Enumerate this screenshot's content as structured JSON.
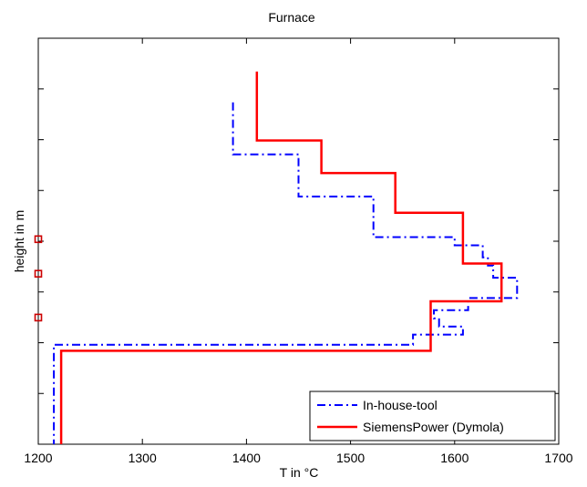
{
  "chart_data": {
    "type": "line",
    "title": "Furnace",
    "xlabel": "T in °C",
    "ylabel": "height in m",
    "xlim": [
      1200,
      1700
    ],
    "ylim": [
      0,
      10
    ],
    "xticks": [
      "1200",
      "1300",
      "1400",
      "1500",
      "1600",
      "1700"
    ],
    "y_tick_count": 8,
    "y_tick_labels_shown": false,
    "grid": false,
    "legend_position": "bottom-right",
    "series": [
      {
        "name": "In-house-tool",
        "color": "#0000ff",
        "style": "dash-dot",
        "points": [
          [
            1387,
            8.42
          ],
          [
            1387,
            7.14
          ],
          [
            1450,
            7.14
          ],
          [
            1450,
            6.1
          ],
          [
            1522,
            6.1
          ],
          [
            1522,
            5.1
          ],
          [
            1600,
            5.1
          ],
          [
            1600,
            4.9
          ],
          [
            1627,
            4.9
          ],
          [
            1627,
            4.6
          ],
          [
            1632,
            4.6
          ],
          [
            1632,
            4.4
          ],
          [
            1637,
            4.4
          ],
          [
            1637,
            4.1
          ],
          [
            1660,
            4.1
          ],
          [
            1660,
            3.6
          ],
          [
            1613,
            3.6
          ],
          [
            1613,
            3.3
          ],
          [
            1580,
            3.3
          ],
          [
            1580,
            3.1
          ],
          [
            1585,
            3.1
          ],
          [
            1585,
            2.9
          ],
          [
            1608,
            2.9
          ],
          [
            1608,
            2.7
          ],
          [
            1560,
            2.7
          ],
          [
            1560,
            2.45
          ],
          [
            1215,
            2.45
          ],
          [
            1215,
            0
          ]
        ]
      },
      {
        "name": "SiemensPower (Dymola)",
        "color": "#ff0000",
        "style": "solid",
        "points": [
          [
            1410,
            9.18
          ],
          [
            1410,
            7.48
          ],
          [
            1472,
            7.48
          ],
          [
            1472,
            6.68
          ],
          [
            1543,
            6.68
          ],
          [
            1543,
            5.7
          ],
          [
            1608,
            5.7
          ],
          [
            1608,
            4.45
          ],
          [
            1645,
            4.45
          ],
          [
            1645,
            3.52
          ],
          [
            1577,
            3.52
          ],
          [
            1577,
            2.3
          ],
          [
            1222,
            2.3
          ],
          [
            1222,
            0
          ]
        ]
      }
    ],
    "markers": {
      "color": "#cc0000",
      "shape": "square",
      "points": [
        [
          1200,
          5.05
        ],
        [
          1200,
          4.2
        ],
        [
          1200,
          3.12
        ]
      ]
    }
  }
}
